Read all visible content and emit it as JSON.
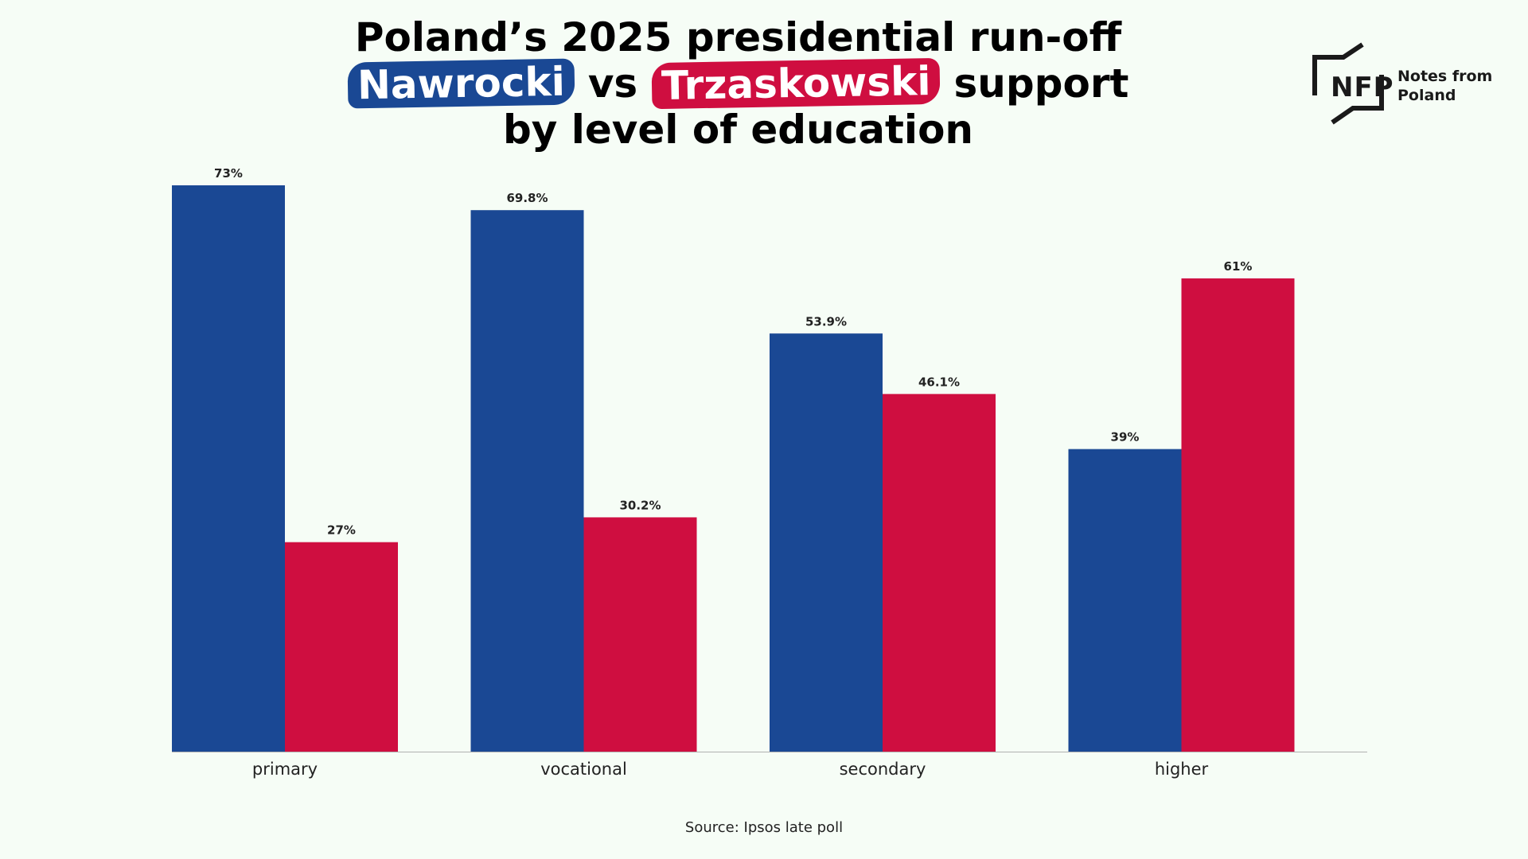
{
  "title": {
    "line1": "Poland’s 2025 presidential run-off",
    "candidate_a": "Nawrocki",
    "vs": "vs",
    "candidate_b": "Trzaskowski",
    "support": "support",
    "line3": "by level of education"
  },
  "logo": {
    "mark": "NFP",
    "text_line1": "Notes from",
    "text_line2": "Poland"
  },
  "source": "Source: Ipsos late poll",
  "colors": {
    "nawrocki": "#1a4894",
    "trzaskowski": "#cf0e40",
    "background": "#f6fdf6",
    "axis": "#b0b0b0",
    "label": "#222222"
  },
  "chart_data": {
    "type": "bar",
    "categories": [
      "primary",
      "vocational",
      "secondary",
      "higher"
    ],
    "series": [
      {
        "name": "Nawrocki",
        "values": [
          73,
          69.8,
          53.9,
          39
        ],
        "labels": [
          "73%",
          "69.8%",
          "53.9%",
          "39%"
        ]
      },
      {
        "name": "Trzaskowski",
        "values": [
          27,
          30.2,
          46.1,
          61
        ],
        "labels": [
          "27%",
          "30.2%",
          "46.1%",
          "61%"
        ]
      }
    ],
    "ylim": [
      0,
      73
    ],
    "xlabel": "",
    "ylabel": "",
    "grid": false,
    "legend": "in-title"
  }
}
